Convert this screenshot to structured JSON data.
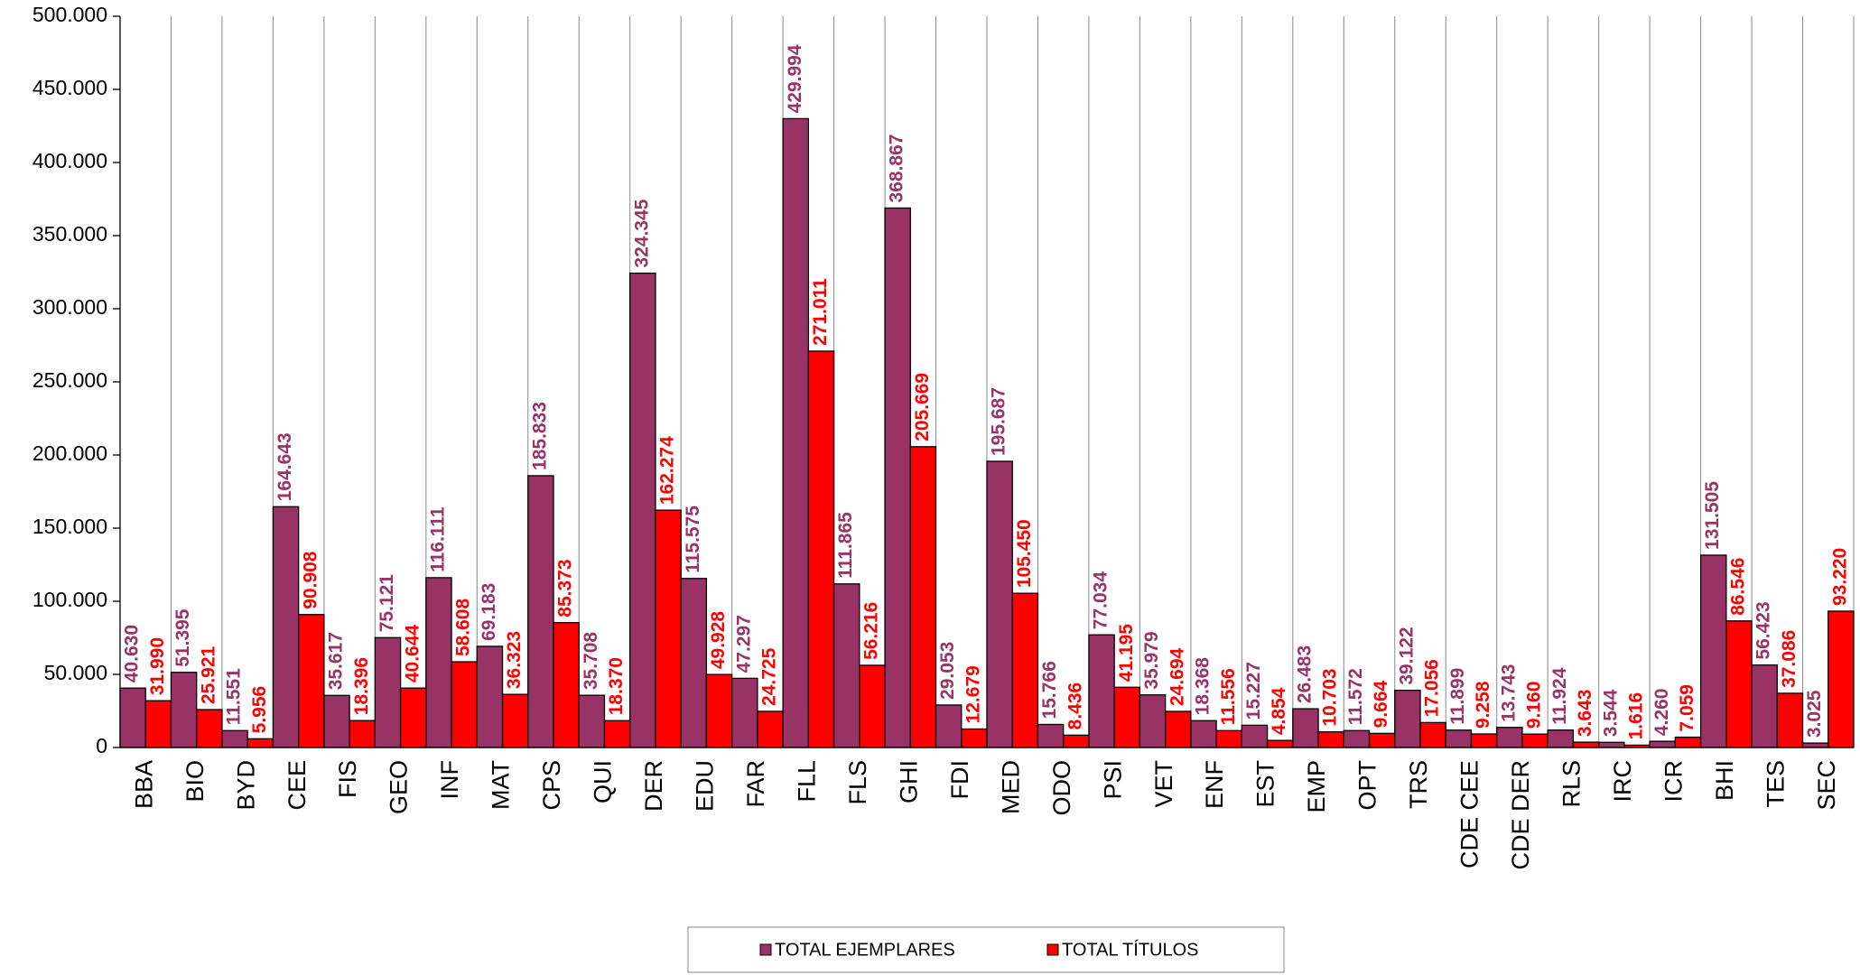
{
  "chart_data": {
    "type": "bar",
    "categories": [
      "BBA",
      "BIO",
      "BYD",
      "CEE",
      "FIS",
      "GEO",
      "INF",
      "MAT",
      "CPS",
      "QUI",
      "DER",
      "EDU",
      "FAR",
      "FLL",
      "FLS",
      "GHI",
      "FDI",
      "MED",
      "ODO",
      "PSI",
      "VET",
      "ENF",
      "EST",
      "EMP",
      "OPT",
      "TRS",
      "CDE CEE",
      "CDE DER",
      "RLS",
      "IRC",
      "ICR",
      "BHI",
      "TES",
      "SEC"
    ],
    "series": [
      {
        "name": "TOTAL EJEMPLARES",
        "color": "#993366",
        "values": [
          40630,
          51395,
          11551,
          164643,
          35617,
          75121,
          116111,
          69183,
          185833,
          35708,
          324345,
          115575,
          47297,
          429994,
          111865,
          368867,
          29053,
          195687,
          15766,
          77034,
          35979,
          18368,
          15227,
          26483,
          11572,
          39122,
          11899,
          13743,
          11924,
          3544,
          4260,
          131505,
          56423,
          3025
        ],
        "value_labels": [
          "40.630",
          "51.395",
          "11.551",
          "164.643",
          "35.617",
          "75.121",
          "116.111",
          "69.183",
          "185.833",
          "35.708",
          "324.345",
          "115.575",
          "47.297",
          "429.994",
          "111.865",
          "368.867",
          "29.053",
          "195.687",
          "15.766",
          "77.034",
          "35.979",
          "18.368",
          "15.227",
          "26.483",
          "11.572",
          "39.122",
          "11.899",
          "13.743",
          "11.924",
          "3.544",
          "4.260",
          "131.505",
          "56.423",
          "3.025"
        ]
      },
      {
        "name": "TOTAL TÍTULOS",
        "color": "#FF0000",
        "values": [
          31990,
          25921,
          5956,
          90908,
          18396,
          40644,
          58608,
          36323,
          85373,
          18370,
          162274,
          49928,
          24725,
          271011,
          56216,
          205669,
          12679,
          105450,
          8436,
          41195,
          24694,
          11556,
          4854,
          10703,
          9664,
          17056,
          9258,
          9160,
          3643,
          1616,
          7059,
          86546,
          37086,
          93220
        ],
        "value_labels": [
          "31.990",
          "25.921",
          "5.956",
          "90.908",
          "18.396",
          "40.644",
          "58.608",
          "36.323",
          "85.373",
          "18.370",
          "162.274",
          "49.928",
          "24.725",
          "271.011",
          "56.216",
          "205.669",
          "12.679",
          "105.450",
          "8.436",
          "41.195",
          "24.694",
          "11.556",
          "4.854",
          "10.703",
          "9.664",
          "17.056",
          "9.258",
          "9.160",
          "3.643",
          "1.616",
          "7.059",
          "86.546",
          "37.086",
          "93.220"
        ]
      }
    ],
    "ylim": [
      0,
      500000
    ],
    "yticks": [
      0,
      {
        "value": 50000,
        "label": "50.000"
      },
      {
        "value": 100000,
        "label": "100.000"
      },
      {
        "value": 150000,
        "label": "150.000"
      },
      {
        "value": 200000,
        "label": "200.000"
      },
      {
        "value": 250000,
        "label": "250.000"
      },
      {
        "value": 300000,
        "label": "300.000"
      },
      {
        "value": 350000,
        "label": "350.000"
      },
      {
        "value": 400000,
        "label": "400.000"
      },
      {
        "value": 450000,
        "label": "450.000"
      },
      {
        "value": 500000,
        "label": "500.000"
      }
    ],
    "legend": "bottom"
  }
}
